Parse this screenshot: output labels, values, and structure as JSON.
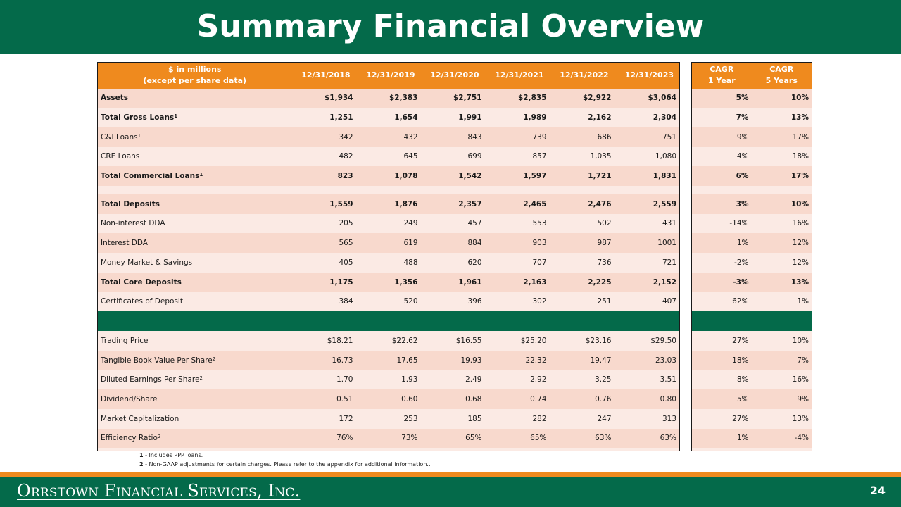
{
  "title": "Summary Financial Overview",
  "header": {
    "label_line1": "$ in millions",
    "label_line2": "(except per share data)",
    "dates": [
      "12/31/2018",
      "12/31/2019",
      "12/31/2020",
      "12/31/2021",
      "12/31/2022",
      "12/31/2023"
    ],
    "cagr1_line1": "CAGR",
    "cagr1_line2": "1 Year",
    "cagr5_line1": "CAGR",
    "cagr5_line2": "5 Years"
  },
  "rows": [
    {
      "label": "Assets",
      "sup": "",
      "values": [
        "$1,934",
        "$2,383",
        "$2,751",
        "$2,835",
        "$2,922",
        "$3,064"
      ],
      "cagr1": "5%",
      "cagr5": "10%"
    },
    {
      "label": "Total Gross Loans",
      "sup": "1",
      "values": [
        "1,251",
        "1,654",
        "1,991",
        "1,989",
        "2,162",
        "2,304"
      ],
      "cagr1": "7%",
      "cagr5": "13%"
    },
    {
      "label": "C&I Loans",
      "sup": "1",
      "values": [
        "342",
        "432",
        "843",
        "739",
        "686",
        "751"
      ],
      "cagr1": "9%",
      "cagr5": "17%"
    },
    {
      "label": "CRE Loans",
      "sup": "",
      "values": [
        "482",
        "645",
        "699",
        "857",
        "1,035",
        "1,080"
      ],
      "cagr1": "4%",
      "cagr5": "18%"
    },
    {
      "label": "Total Commercial Loans",
      "sup": "1",
      "values": [
        "823",
        "1,078",
        "1,542",
        "1,597",
        "1,721",
        "1,831"
      ],
      "cagr1": "6%",
      "cagr5": "17%"
    },
    {
      "label": "Total Deposits",
      "sup": "",
      "values": [
        "1,559",
        "1,876",
        "2,357",
        "2,465",
        "2,476",
        "2,559"
      ],
      "cagr1": "3%",
      "cagr5": "10%"
    },
    {
      "label": "Non-interest DDA",
      "sup": "",
      "values": [
        "205",
        "249",
        "457",
        "553",
        "502",
        "431"
      ],
      "cagr1": "-14%",
      "cagr5": "16%"
    },
    {
      "label": "Interest DDA",
      "sup": "",
      "values": [
        "565",
        "619",
        "884",
        "903",
        "987",
        "1001"
      ],
      "cagr1": "1%",
      "cagr5": "12%"
    },
    {
      "label": "Money Market & Savings",
      "sup": "",
      "values": [
        "405",
        "488",
        "620",
        "707",
        "736",
        "721"
      ],
      "cagr1": "-2%",
      "cagr5": "12%"
    },
    {
      "label": "Total Core Deposits",
      "sup": "",
      "values": [
        "1,175",
        "1,356",
        "1,961",
        "2,163",
        "2,225",
        "2,152"
      ],
      "cagr1": "-3%",
      "cagr5": "13%"
    },
    {
      "label": "Certificates of Deposit",
      "sup": "",
      "values": [
        "384",
        "520",
        "396",
        "302",
        "251",
        "407"
      ],
      "cagr1": "62%",
      "cagr5": "1%"
    },
    {
      "label": "Trading Price",
      "sup": "",
      "values": [
        "$18.21",
        "$22.62",
        "$16.55",
        "$25.20",
        "$23.16",
        "$29.50"
      ],
      "cagr1": "27%",
      "cagr5": "10%"
    },
    {
      "label": "Tangible Book Value Per Share",
      "sup": "2",
      "values": [
        "16.73",
        "17.65",
        "19.93",
        "22.32",
        "19.47",
        "23.03"
      ],
      "cagr1": "18%",
      "cagr5": "7%"
    },
    {
      "label": "Diluted Earnings Per Share",
      "sup": "2",
      "values": [
        "1.70",
        "1.93",
        "2.49",
        "2.92",
        "3.25",
        "3.51"
      ],
      "cagr1": "8%",
      "cagr5": "16%"
    },
    {
      "label": "Dividend/Share",
      "sup": "",
      "values": [
        "0.51",
        "0.60",
        "0.68",
        "0.74",
        "0.76",
        "0.80"
      ],
      "cagr1": "5%",
      "cagr5": "9%"
    },
    {
      "label": "Market Capitalization",
      "sup": "",
      "values": [
        "172",
        "253",
        "185",
        "282",
        "247",
        "313"
      ],
      "cagr1": "27%",
      "cagr5": "13%"
    },
    {
      "label": "Efficiency Ratio",
      "sup": "2",
      "values": [
        "76%",
        "73%",
        "65%",
        "65%",
        "63%",
        "63%"
      ],
      "cagr1": "1%",
      "cagr5": "-4%"
    }
  ],
  "footnotes": [
    {
      "num": "1",
      "text": " - Includes PPP loans."
    },
    {
      "num": "2",
      "text": " - Non-GAAP adjustments for certain charges. Please refer to the appendix for additional information.."
    }
  ],
  "footer": {
    "logo": "Orrstown Financial Services, Inc.",
    "page_number": "24"
  },
  "colors": {
    "brand_green": "#046a4a",
    "header_orange": "#ef8a1e",
    "row_shade_dark": "#f8d9cd",
    "row_shade_light": "#fbeae4"
  }
}
